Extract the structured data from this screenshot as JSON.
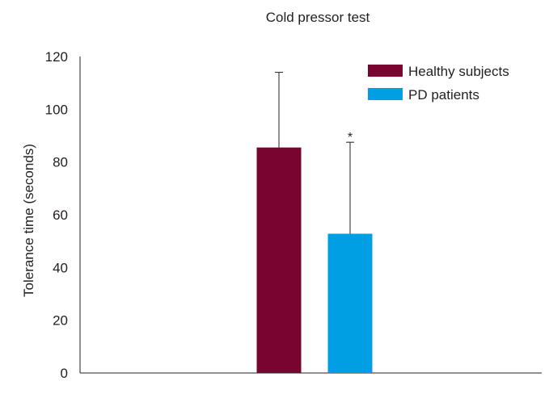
{
  "chart_data": {
    "type": "bar",
    "title": "Cold pressor test",
    "xlabel": "",
    "ylabel": "Tolerance time (seconds)",
    "ylim": [
      0,
      120
    ],
    "yticks": [
      "0",
      "20",
      "40",
      "60",
      "80",
      "100",
      "120"
    ],
    "legend_position": "top-right",
    "series": [
      {
        "name": "Healthy subjects",
        "value": 85.5,
        "error": 28.5,
        "color": "#7a0430",
        "annotation": ""
      },
      {
        "name": "PD patients",
        "value": 52.8,
        "error": 34.7,
        "color": "#009fe3",
        "annotation": "*"
      }
    ]
  }
}
